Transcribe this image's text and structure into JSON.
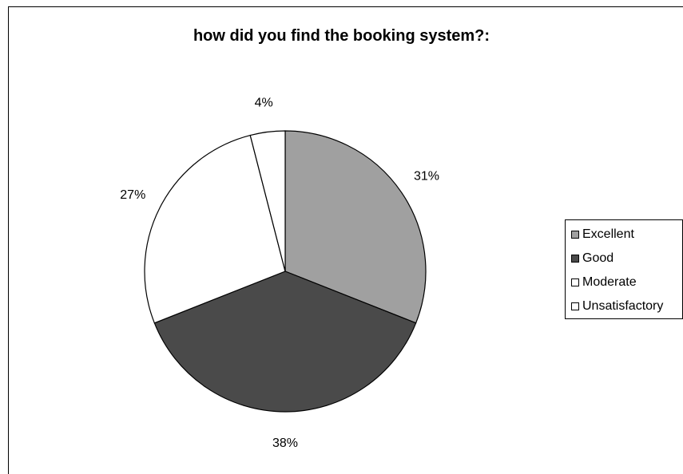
{
  "chart_data": {
    "type": "pie",
    "title": "how did you find the booking system?:",
    "categories": [
      "Excellent",
      "Good",
      "Moderate",
      "Unsatisfactory"
    ],
    "values": [
      31,
      38,
      27,
      4
    ],
    "labels": [
      "31%",
      "38%",
      "27%",
      "4%"
    ],
    "colors": [
      "#a0a0a0",
      "#4a4a4a",
      "#ffffff",
      "#ffffff"
    ],
    "legend_position": "right"
  }
}
